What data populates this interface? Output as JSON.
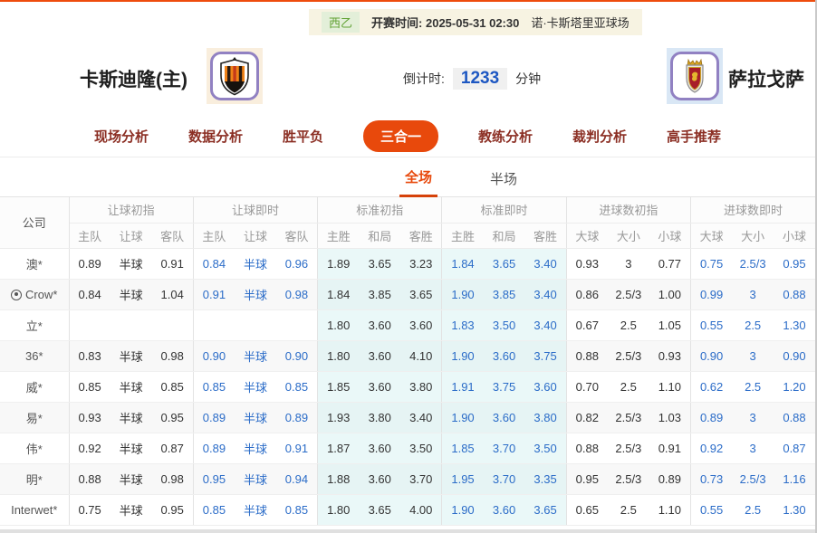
{
  "colors": {
    "accent_orange": "#e8490c",
    "live_odds_blue": "#2b6cc8",
    "league_green": "#61a234",
    "info_bar_bg": "#f7f3e2",
    "cyan_column_bg": "#eaf8f8",
    "nav_text_maroon": "#8b2e23",
    "countdown_blue": "#1d57c2"
  },
  "info_bar": {
    "league": "西乙",
    "kickoff_label": "开赛时间:",
    "kickoff_time": "2025-05-31 02:30",
    "venue": "诺·卡斯塔里亚球场"
  },
  "match": {
    "home_name": "卡斯迪隆(主)",
    "away_name": "萨拉戈萨",
    "home_badge_icon": "castellon-crest-icon",
    "away_badge_icon": "zaragoza-crest-icon",
    "countdown_label": "倒计时:",
    "countdown_value": "1233",
    "countdown_unit": "分钟"
  },
  "nav": {
    "tabs": [
      {
        "label": "现场分析",
        "active": false
      },
      {
        "label": "数据分析",
        "active": false
      },
      {
        "label": "胜平负",
        "active": false
      },
      {
        "label": "三合一",
        "active": true
      },
      {
        "label": "教练分析",
        "active": false
      },
      {
        "label": "裁判分析",
        "active": false
      },
      {
        "label": "高手推荐",
        "active": false
      }
    ]
  },
  "sub_tabs": [
    {
      "label": "全场",
      "active": true
    },
    {
      "label": "半场",
      "active": false
    }
  ],
  "table": {
    "company_header": "公司",
    "groups": [
      {
        "label": "让球初指",
        "cols": [
          "主队",
          "让球",
          "客队"
        ]
      },
      {
        "label": "让球即时",
        "cols": [
          "主队",
          "让球",
          "客队"
        ]
      },
      {
        "label": "标准初指",
        "cols": [
          "主胜",
          "和局",
          "客胜"
        ]
      },
      {
        "label": "标准即时",
        "cols": [
          "主胜",
          "和局",
          "客胜"
        ]
      },
      {
        "label": "进球数初指",
        "cols": [
          "大球",
          "大小",
          "小球"
        ]
      },
      {
        "label": "进球数即时",
        "cols": [
          "大球",
          "大小",
          "小球"
        ]
      }
    ],
    "rows": [
      {
        "company": "澳*",
        "icon": false,
        "values": [
          [
            "0.89",
            "半球",
            "0.91"
          ],
          [
            "0.84",
            "半球",
            "0.96"
          ],
          [
            "1.89",
            "3.65",
            "3.23"
          ],
          [
            "1.84",
            "3.65",
            "3.40"
          ],
          [
            "0.93",
            "3",
            "0.77"
          ],
          [
            "0.75",
            "2.5/3",
            "0.95"
          ]
        ]
      },
      {
        "company": "Crow*",
        "icon": true,
        "values": [
          [
            "0.84",
            "半球",
            "1.04"
          ],
          [
            "0.91",
            "半球",
            "0.98"
          ],
          [
            "1.84",
            "3.85",
            "3.65"
          ],
          [
            "1.90",
            "3.85",
            "3.40"
          ],
          [
            "0.86",
            "2.5/3",
            "1.00"
          ],
          [
            "0.99",
            "3",
            "0.88"
          ]
        ]
      },
      {
        "company": "立*",
        "icon": false,
        "values": [
          [
            "",
            "",
            ""
          ],
          [
            "",
            "",
            ""
          ],
          [
            "1.80",
            "3.60",
            "3.60"
          ],
          [
            "1.83",
            "3.50",
            "3.40"
          ],
          [
            "0.67",
            "2.5",
            "1.05"
          ],
          [
            "0.55",
            "2.5",
            "1.30"
          ]
        ]
      },
      {
        "company": "36*",
        "icon": false,
        "values": [
          [
            "0.83",
            "半球",
            "0.98"
          ],
          [
            "0.90",
            "半球",
            "0.90"
          ],
          [
            "1.80",
            "3.60",
            "4.10"
          ],
          [
            "1.90",
            "3.60",
            "3.75"
          ],
          [
            "0.88",
            "2.5/3",
            "0.93"
          ],
          [
            "0.90",
            "3",
            "0.90"
          ]
        ]
      },
      {
        "company": "威*",
        "icon": false,
        "values": [
          [
            "0.85",
            "半球",
            "0.85"
          ],
          [
            "0.85",
            "半球",
            "0.85"
          ],
          [
            "1.85",
            "3.60",
            "3.80"
          ],
          [
            "1.91",
            "3.75",
            "3.60"
          ],
          [
            "0.70",
            "2.5",
            "1.10"
          ],
          [
            "0.62",
            "2.5",
            "1.20"
          ]
        ]
      },
      {
        "company": "易*",
        "icon": false,
        "values": [
          [
            "0.93",
            "半球",
            "0.95"
          ],
          [
            "0.89",
            "半球",
            "0.89"
          ],
          [
            "1.93",
            "3.80",
            "3.40"
          ],
          [
            "1.90",
            "3.60",
            "3.80"
          ],
          [
            "0.82",
            "2.5/3",
            "1.03"
          ],
          [
            "0.89",
            "3",
            "0.88"
          ]
        ]
      },
      {
        "company": "伟*",
        "icon": false,
        "values": [
          [
            "0.92",
            "半球",
            "0.87"
          ],
          [
            "0.89",
            "半球",
            "0.91"
          ],
          [
            "1.87",
            "3.60",
            "3.50"
          ],
          [
            "1.85",
            "3.70",
            "3.50"
          ],
          [
            "0.88",
            "2.5/3",
            "0.91"
          ],
          [
            "0.92",
            "3",
            "0.87"
          ]
        ]
      },
      {
        "company": "明*",
        "icon": false,
        "values": [
          [
            "0.88",
            "半球",
            "0.98"
          ],
          [
            "0.95",
            "半球",
            "0.94"
          ],
          [
            "1.88",
            "3.60",
            "3.70"
          ],
          [
            "1.95",
            "3.70",
            "3.35"
          ],
          [
            "0.95",
            "2.5/3",
            "0.89"
          ],
          [
            "0.73",
            "2.5/3",
            "1.16"
          ]
        ]
      },
      {
        "company": "Interwet*",
        "icon": false,
        "values": [
          [
            "0.75",
            "半球",
            "0.95"
          ],
          [
            "0.85",
            "半球",
            "0.85"
          ],
          [
            "1.80",
            "3.65",
            "4.00"
          ],
          [
            "1.90",
            "3.60",
            "3.65"
          ],
          [
            "0.65",
            "2.5",
            "1.10"
          ],
          [
            "0.55",
            "2.5",
            "1.30"
          ]
        ]
      }
    ]
  }
}
